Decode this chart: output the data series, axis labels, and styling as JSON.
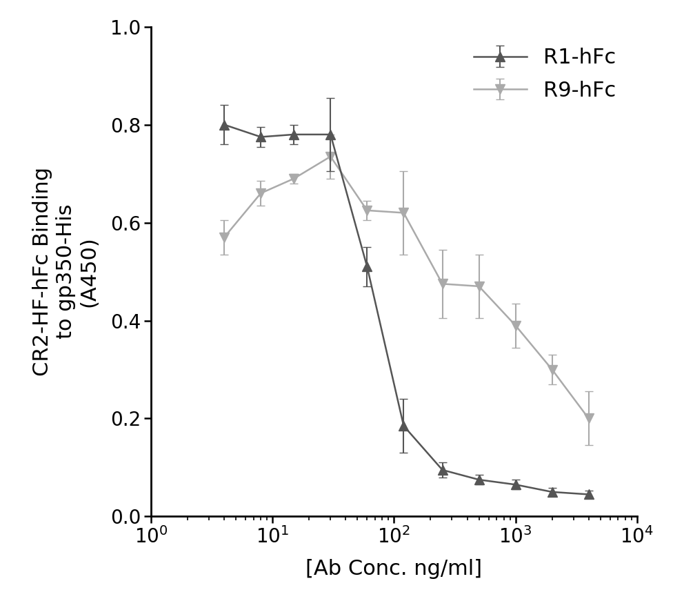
{
  "title": "",
  "xlabel": "[Ab Conc. ng/ml]",
  "ylabel": "CR2-HF-hFc Binding\nto gp350-His\n(A450)",
  "xlim": [
    1,
    10000
  ],
  "ylim": [
    0.0,
    1.0
  ],
  "yticks": [
    0.0,
    0.2,
    0.4,
    0.6,
    0.8,
    1.0
  ],
  "R1_x": [
    4,
    8,
    15,
    30,
    60,
    120,
    250,
    500,
    1000,
    2000,
    4000
  ],
  "R1_y": [
    0.8,
    0.775,
    0.78,
    0.78,
    0.51,
    0.185,
    0.095,
    0.075,
    0.065,
    0.05,
    0.045
  ],
  "R1_yerr": [
    0.04,
    0.02,
    0.02,
    0.075,
    0.04,
    0.055,
    0.015,
    0.01,
    0.01,
    0.008,
    0.008
  ],
  "R9_x": [
    4,
    8,
    15,
    30,
    60,
    120,
    250,
    500,
    1000,
    2000,
    4000
  ],
  "R9_y": [
    0.57,
    0.66,
    0.69,
    0.735,
    0.625,
    0.62,
    0.475,
    0.47,
    0.39,
    0.3,
    0.2
  ],
  "R9_yerr": [
    0.035,
    0.025,
    0.01,
    0.045,
    0.02,
    0.085,
    0.07,
    0.065,
    0.045,
    0.03,
    0.055
  ],
  "R1_color": "#555555",
  "R9_color": "#aaaaaa",
  "R1_label": "R1-hFc",
  "R9_label": "R9-hFc",
  "linewidth": 1.8,
  "markersize": 10,
  "capsize": 4,
  "elinewidth": 1.5,
  "legend_fontsize": 22,
  "axis_label_fontsize": 22,
  "tick_fontsize": 20
}
